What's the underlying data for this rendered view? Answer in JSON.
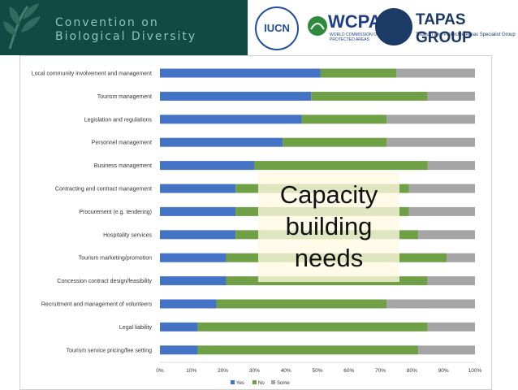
{
  "header": {
    "cbd_text": "Convention on\nBiological Diversity",
    "iucn": "IUCN",
    "wcpa": "WCPA",
    "wcpa_sub": "WORLD COMMISSION ON PROTECTED AREAS",
    "tapas": "TAPAS GROUP",
    "tapas_sub": "Tourism and Protected Areas Specialist Group"
  },
  "overlay": {
    "text": "Capacity\nbuilding\nneeds"
  },
  "colors": {
    "yes": "#4472c4",
    "no": "#70a045",
    "some": "#a5a5a5",
    "cbd": "#0f4a43"
  },
  "chart_data": {
    "type": "bar",
    "orientation": "horizontal",
    "stacked": "percent",
    "categories": [
      "Local community involvement and management",
      "Tourism management",
      "Legislation and regulations",
      "Personnel management",
      "Business management",
      "Contracting and contract management",
      "Procurement (e.g. tendering)",
      "Hospitality services",
      "Tourism marketing/promotion",
      "Concession contract design/feasibility",
      "Recruitment and management of volunteers",
      "Legal liability",
      "Tourism service pricing/fee setting"
    ],
    "series": [
      {
        "name": "Yes",
        "values": [
          51,
          48,
          45,
          39,
          30,
          24,
          24,
          24,
          21,
          21,
          18,
          12,
          12
        ]
      },
      {
        "name": "No",
        "values": [
          24,
          37,
          27,
          33,
          55,
          55,
          55,
          58,
          70,
          64,
          54,
          73,
          70
        ]
      },
      {
        "name": "Some",
        "values": [
          25,
          15,
          28,
          28,
          15,
          21,
          21,
          18,
          9,
          15,
          28,
          15,
          18
        ]
      }
    ],
    "xticks": [
      "0%",
      "10%",
      "20%",
      "30%",
      "40%",
      "50%",
      "60%",
      "70%",
      "80%",
      "90%",
      "100%"
    ],
    "xlim": [
      0,
      100
    ],
    "legend": "bottom",
    "grid": false
  }
}
